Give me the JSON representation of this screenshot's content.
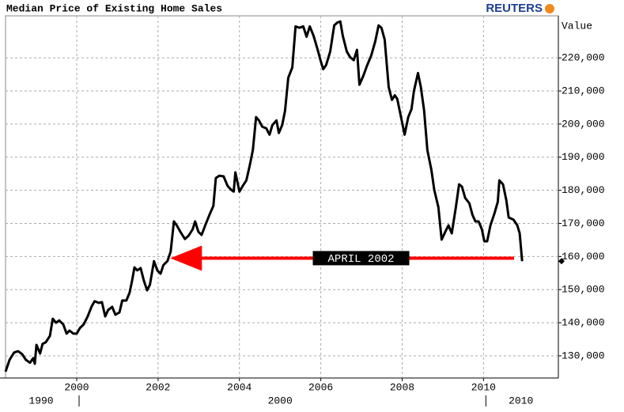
{
  "chart_data": {
    "type": "line",
    "title": "Median Price of Existing Home Sales",
    "logo": "REUTERS",
    "y_axis_label": "Value",
    "color": "#000000",
    "grid": true,
    "xlim": [
      1998.25,
      2011.84
    ],
    "xticks": [
      2000,
      2002,
      2004,
      2006,
      2008,
      2010
    ],
    "ylim": [
      123300,
      232700
    ],
    "yticks": [
      {
        "value": 130000,
        "label": "130,000"
      },
      {
        "value": 140000,
        "label": "140,000"
      },
      {
        "value": 150000,
        "label": "150,000"
      },
      {
        "value": 160000,
        "label": "160,000"
      },
      {
        "value": 170000,
        "label": "170,000"
      },
      {
        "value": 180000,
        "label": "180,000"
      },
      {
        "value": 190000,
        "label": "190,000"
      },
      {
        "value": 200000,
        "label": "200,000"
      },
      {
        "value": 210000,
        "label": "210,000"
      },
      {
        "value": 220000,
        "label": "220,000"
      }
    ],
    "x_groups": [
      {
        "label": "1990",
        "start": 1990,
        "end": 2000
      },
      {
        "label": "2000",
        "start": 2000,
        "end": 2010
      },
      {
        "label": "2010",
        "start": 2010,
        "end": 2020
      }
    ],
    "annotation": {
      "text": "APRIL 2002",
      "color": "#ff0000",
      "x": 2002.3,
      "y": 159500,
      "arrow_from": 2010.75
    },
    "x": [
      1998.25,
      1998.35,
      1998.46,
      1998.56,
      1998.66,
      1998.75,
      1998.85,
      1998.93,
      1998.97,
      1999.01,
      1999.1,
      1999.16,
      1999.24,
      1999.34,
      1999.41,
      1999.49,
      1999.57,
      1999.67,
      1999.75,
      1999.82,
      1999.92,
      2000.0,
      2000.08,
      2000.17,
      2000.27,
      2000.37,
      2000.44,
      2000.54,
      2000.62,
      2000.7,
      2000.77,
      2000.87,
      2000.95,
      2001.05,
      2001.12,
      2001.22,
      2001.3,
      2001.36,
      2001.42,
      2001.49,
      2001.57,
      2001.65,
      2001.73,
      2001.8,
      2001.9,
      2001.98,
      2002.06,
      2002.13,
      2002.23,
      2002.31,
      2002.39,
      2002.46,
      2002.56,
      2002.66,
      2002.75,
      2002.85,
      2002.91,
      2002.99,
      2003.07,
      2003.16,
      2003.26,
      2003.36,
      2003.42,
      2003.51,
      2003.61,
      2003.71,
      2003.8,
      2003.86,
      2003.9,
      2004.0,
      2004.08,
      2004.17,
      2004.25,
      2004.33,
      2004.41,
      2004.48,
      2004.56,
      2004.66,
      2004.74,
      2004.81,
      2004.91,
      2004.97,
      2005.05,
      2005.12,
      2005.2,
      2005.3,
      2005.38,
      2005.47,
      2005.57,
      2005.65,
      2005.73,
      2005.82,
      2005.92,
      2006.0,
      2006.06,
      2006.13,
      2006.23,
      2006.33,
      2006.41,
      2006.48,
      2006.54,
      2006.64,
      2006.72,
      2006.81,
      2006.89,
      2006.95,
      2007.05,
      2007.14,
      2007.24,
      2007.34,
      2007.42,
      2007.49,
      2007.57,
      2007.67,
      2007.75,
      2007.82,
      2007.88,
      2007.98,
      2008.06,
      2008.15,
      2008.23,
      2008.29,
      2008.39,
      2008.46,
      2008.54,
      2008.62,
      2008.72,
      2008.79,
      2008.89,
      2008.97,
      2009.07,
      2009.14,
      2009.22,
      2009.32,
      2009.4,
      2009.47,
      2009.55,
      2009.65,
      2009.73,
      2009.8,
      2009.88,
      2009.96,
      2010.02,
      2010.09,
      2010.17,
      2010.27,
      2010.35,
      2010.39,
      2010.48,
      2010.56,
      2010.62,
      2010.74,
      2010.83,
      2010.89,
      2010.95
    ],
    "values": [
      125200,
      128800,
      131000,
      131400,
      130500,
      128800,
      127900,
      129300,
      127600,
      133300,
      130700,
      133600,
      134100,
      136000,
      141200,
      140000,
      140700,
      139500,
      136700,
      137600,
      136700,
      136700,
      138400,
      139500,
      141900,
      145000,
      146500,
      146000,
      146200,
      141900,
      143800,
      144800,
      142400,
      143100,
      146700,
      146700,
      149100,
      152700,
      156700,
      155800,
      156500,
      152700,
      149800,
      151500,
      158600,
      155800,
      154800,
      157400,
      158600,
      161500,
      170600,
      169400,
      167200,
      165300,
      166300,
      168200,
      170600,
      167500,
      166500,
      169400,
      172500,
      175300,
      183700,
      184400,
      184200,
      181300,
      180100,
      179600,
      185400,
      179600,
      181300,
      183000,
      187300,
      192100,
      202100,
      201100,
      199200,
      198700,
      196800,
      199700,
      201100,
      197300,
      199700,
      204000,
      214000,
      217100,
      229500,
      229100,
      229500,
      226400,
      229500,
      226700,
      222600,
      219000,
      216600,
      217800,
      221900,
      229800,
      230700,
      231000,
      226700,
      221900,
      220200,
      219300,
      222400,
      211900,
      214700,
      217800,
      220700,
      225000,
      229800,
      229100,
      225500,
      211100,
      207300,
      208700,
      207600,
      201600,
      196800,
      202100,
      204500,
      210000,
      215400,
      211100,
      204000,
      192100,
      186100,
      180100,
      174900,
      165100,
      167700,
      169400,
      167000,
      174900,
      181800,
      181100,
      177700,
      176100,
      172500,
      170600,
      170600,
      168200,
      164600,
      164600,
      169400,
      173000,
      176500,
      183000,
      181800,
      177000,
      171800,
      171100,
      169400,
      167000,
      158600
    ]
  }
}
